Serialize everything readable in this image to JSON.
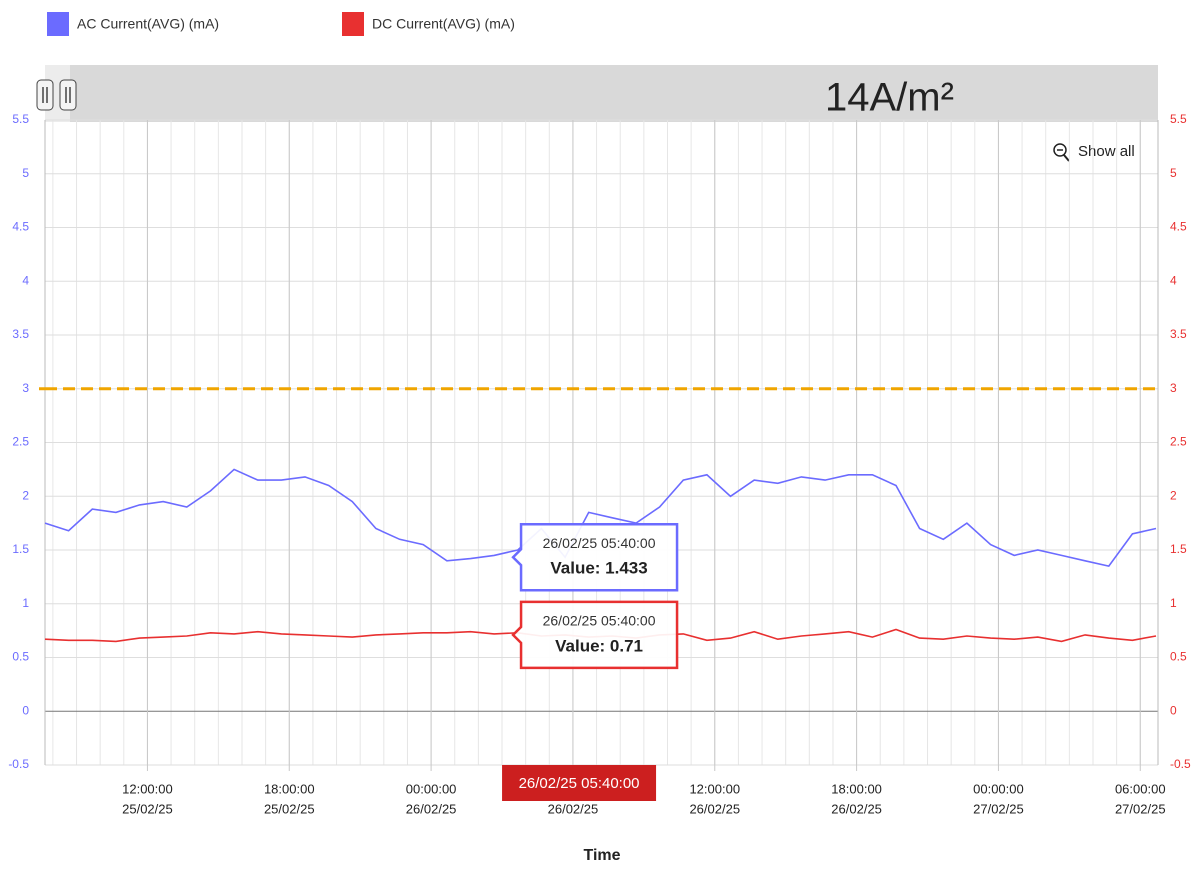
{
  "chart_data": {
    "type": "line",
    "annotation": "14A/m²",
    "button": "Show all",
    "xlabel": "Time",
    "xlim": [
      "2025-02-25 07:40",
      "2025-02-27 06:45"
    ],
    "xticks": [
      {
        "value": "2025-02-25 12:00",
        "label": [
          "12:00:00",
          "25/02/25"
        ]
      },
      {
        "value": "2025-02-25 18:00",
        "label": [
          "18:00:00",
          "25/02/25"
        ]
      },
      {
        "value": "2025-02-26 00:00",
        "label": [
          "00:00:00",
          "26/02/25"
        ]
      },
      {
        "value": "2025-02-26 06:00",
        "label": [
          "06:00:00",
          "26/02/25"
        ]
      },
      {
        "value": "2025-02-26 12:00",
        "label": [
          "12:00:00",
          "26/02/25"
        ]
      },
      {
        "value": "2025-02-26 18:00",
        "label": [
          "18:00:00",
          "26/02/25"
        ]
      },
      {
        "value": "2025-02-27 00:00",
        "label": [
          "00:00:00",
          "27/02/25"
        ]
      },
      {
        "value": "2025-02-27 06:00",
        "label": [
          "06:00:00",
          "27/02/25"
        ]
      }
    ],
    "x_minor_grid": true,
    "ylim": [
      -0.5,
      5.5
    ],
    "yticks": [
      -0.5,
      0,
      0.5,
      1,
      1.5,
      2,
      2.5,
      3,
      3.5,
      4,
      4.5,
      5,
      5.5
    ],
    "y2lim": [
      -0.5,
      5.5
    ],
    "y2ticks": [
      -0.5,
      0,
      0.5,
      1,
      1.5,
      2,
      2.5,
      3,
      3.5,
      4,
      4.5,
      5,
      5.5
    ],
    "grid": true,
    "threshold": {
      "value": 3,
      "color": "#f0a500"
    },
    "x": [
      "2025-02-25 07:40",
      "2025-02-25 08:40",
      "2025-02-25 09:40",
      "2025-02-25 10:40",
      "2025-02-25 11:40",
      "2025-02-25 12:40",
      "2025-02-25 13:40",
      "2025-02-25 14:40",
      "2025-02-25 15:40",
      "2025-02-25 16:40",
      "2025-02-25 17:40",
      "2025-02-25 18:40",
      "2025-02-25 19:40",
      "2025-02-25 20:40",
      "2025-02-25 21:40",
      "2025-02-25 22:40",
      "2025-02-25 23:40",
      "2025-02-26 00:40",
      "2025-02-26 01:40",
      "2025-02-26 02:40",
      "2025-02-26 03:40",
      "2025-02-26 04:40",
      "2025-02-26 05:40",
      "2025-02-26 06:40",
      "2025-02-26 07:40",
      "2025-02-26 08:40",
      "2025-02-26 09:40",
      "2025-02-26 10:40",
      "2025-02-26 11:40",
      "2025-02-26 12:40",
      "2025-02-26 13:40",
      "2025-02-26 14:40",
      "2025-02-26 15:40",
      "2025-02-26 16:40",
      "2025-02-26 17:40",
      "2025-02-26 18:40",
      "2025-02-26 19:40",
      "2025-02-26 20:40",
      "2025-02-26 21:40",
      "2025-02-26 22:40",
      "2025-02-26 23:40",
      "2025-02-27 00:40",
      "2025-02-27 01:40",
      "2025-02-27 02:40",
      "2025-02-27 03:40",
      "2025-02-27 04:40",
      "2025-02-27 05:40",
      "2025-02-27 06:40"
    ],
    "series": [
      {
        "name": "AC Current(AVG) (mA)",
        "color": "#6b6bff",
        "values": [
          1.75,
          1.68,
          1.88,
          1.85,
          1.92,
          1.95,
          1.9,
          2.05,
          2.25,
          2.15,
          2.15,
          2.18,
          2.1,
          1.95,
          1.7,
          1.6,
          1.55,
          1.4,
          1.42,
          1.45,
          1.5,
          1.7,
          1.433,
          1.85,
          1.8,
          1.75,
          1.9,
          2.15,
          2.2,
          2.0,
          2.15,
          2.12,
          2.18,
          2.15,
          2.2,
          2.2,
          2.1,
          1.7,
          1.6,
          1.75,
          1.55,
          1.45,
          1.5,
          1.45,
          1.4,
          1.35,
          1.65,
          1.7
        ]
      },
      {
        "name": "DC Current(AVG) (mA)",
        "color": "#e83030",
        "axis": "y2",
        "values": [
          0.67,
          0.66,
          0.66,
          0.65,
          0.68,
          0.69,
          0.7,
          0.73,
          0.72,
          0.74,
          0.72,
          0.71,
          0.7,
          0.69,
          0.71,
          0.72,
          0.73,
          0.73,
          0.74,
          0.72,
          0.73,
          0.7,
          0.71,
          0.69,
          0.7,
          0.68,
          0.71,
          0.72,
          0.66,
          0.68,
          0.74,
          0.67,
          0.7,
          0.72,
          0.74,
          0.69,
          0.76,
          0.68,
          0.67,
          0.7,
          0.68,
          0.67,
          0.69,
          0.65,
          0.71,
          0.68,
          0.66,
          0.7
        ]
      }
    ],
    "crosshair": {
      "x": "2025-02-26 05:40",
      "label": "26/02/25 05:40:00",
      "color": "#cc1f1f"
    },
    "tooltips": [
      {
        "time": "26/02/25 05:40:00",
        "text": "Value: 1.433"
      },
      {
        "time": "26/02/25 05:40:00",
        "text": "Value: 0.71"
      }
    ]
  }
}
